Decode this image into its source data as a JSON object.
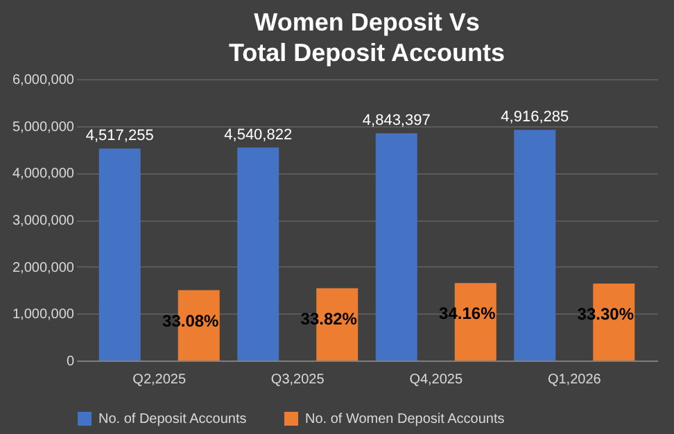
{
  "chart_data": {
    "type": "bar",
    "title": "Women Deposit Vs Total Deposit Accounts",
    "categories": [
      "Q2,2025",
      "Q3,2025",
      "Q4,2025",
      "Q1,2026"
    ],
    "series": [
      {
        "name": "No. of Deposit Accounts",
        "color": "#4472c4",
        "values": [
          4517255,
          4540822,
          4843397,
          4916285
        ],
        "value_labels": [
          "4,517,255",
          "4,540,822",
          "4,843,397",
          "4,916,285"
        ]
      },
      {
        "name": "No. of Women Deposit Accounts",
        "color": "#ed7d31",
        "values": [
          1500000,
          1540000,
          1650000,
          1640000
        ]
      }
    ],
    "annotations": [
      "33.08%",
      "33.82%",
      "34.16%",
      "33.30%"
    ],
    "ylim": [
      0,
      6000000
    ],
    "yticks": [
      0,
      {
        "value": 1000000,
        "label": "1,000,000"
      },
      {
        "value": 2000000,
        "label": "2,000,000"
      },
      {
        "value": 3000000,
        "label": "3,000,000"
      },
      {
        "value": 4000000,
        "label": "4,000,000"
      },
      {
        "value": 5000000,
        "label": "5,000,000"
      },
      {
        "value": 6000000,
        "label": "6,000,000"
      }
    ],
    "grid": "y",
    "legend": "bottom"
  }
}
